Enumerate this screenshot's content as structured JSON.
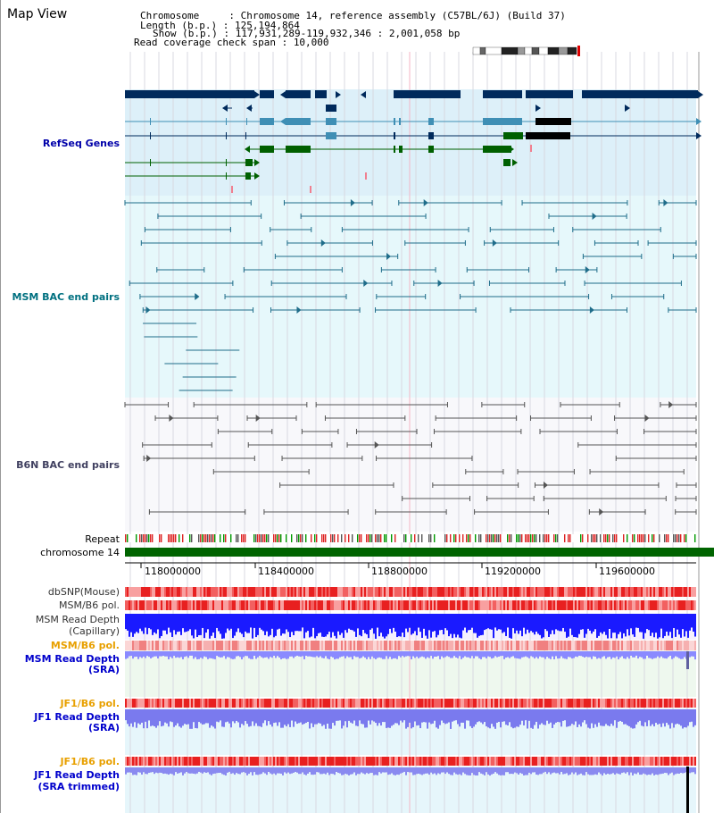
{
  "title": "Map View",
  "header": {
    "chromosome_label": "Chromosome     :",
    "chromosome_value": "Chromosome 14, reference assembly (C57BL/6J) (Build 37)",
    "length_label": "Length (b.p.) :",
    "length_value": "125,194,864",
    "show_label": "Show (b.p.) :",
    "show_value": "117,931,289-119,932,346 : 2,001,058 bp",
    "coverage_label": "Read coverage check span :",
    "coverage_value": "10,000"
  },
  "tracks": {
    "refseq": "RefSeq Genes",
    "msm_bac": "MSM BAC end pairs",
    "b6n_bac": "B6N BAC end pairs",
    "repeat": "Repeat",
    "chromosome": "chromosome 14",
    "dbsnp": "dbSNP(Mouse)",
    "msm_b6_pol_1": "MSM/B6 pol.",
    "msm_read_depth_cap_1": "MSM Read Depth",
    "msm_read_depth_cap_2": "(Capillary)",
    "msm_b6_pol_2": "MSM/B6 pol.",
    "msm_read_depth_sra_1": "MSM Read Depth",
    "msm_read_depth_sra_2": "(SRA)",
    "jf1_b6_pol_1": "JF1/B6 pol.",
    "jf1_read_depth_sra_1": "JF1 Read Depth",
    "jf1_read_depth_sra_2": "(SRA)",
    "jf1_b6_pol_2": "JF1/B6 pol.",
    "jf1_read_depth_trim_1": "JF1 Read Depth",
    "jf1_read_depth_trim_2": "(SRA trimmed)"
  },
  "axis": {
    "ticks": [
      "118000000",
      "118400000",
      "118800000",
      "119200000",
      "119600000"
    ]
  },
  "colors": {
    "refseq_bg": "#ddf0f9",
    "msm_bg": "#e6f8fb",
    "b6n_bg": "#f8f8fb",
    "msm_label": "#007080",
    "refseq_label": "#0000aa",
    "b6n_label": "#404060",
    "orange_label": "#e8a000",
    "blue_label": "#0000cc",
    "gene_dark": "#002a5c",
    "gene_mid": "#3f8fb5",
    "gene_green": "#006000",
    "bac_teal": "#1f6d8a",
    "bac_grey": "#555555",
    "chrom_green": "#006400"
  }
}
